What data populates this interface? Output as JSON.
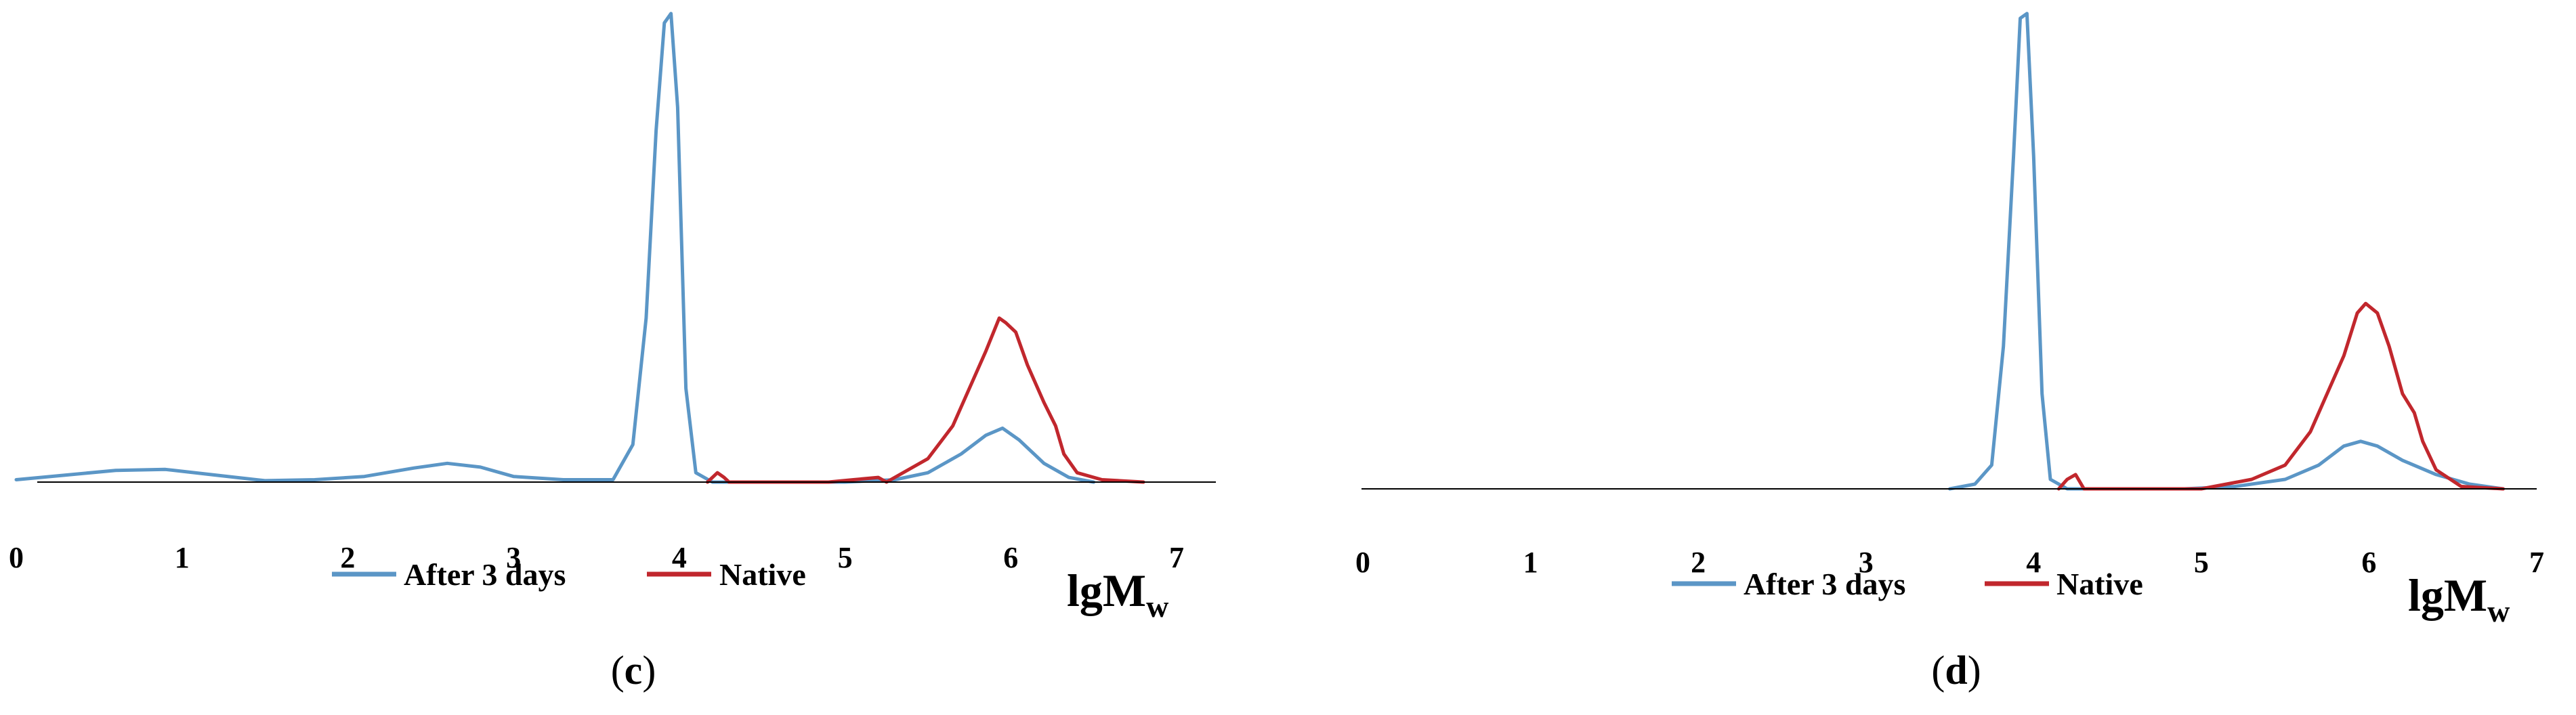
{
  "colors": {
    "after": "#5B96C6",
    "native": "#C1272D",
    "axis": "#000000"
  },
  "panels": [
    {
      "id": "c",
      "label_open": "(",
      "label_letter": "c",
      "label_close": ")",
      "legend": [
        "After 3 days",
        "Native"
      ],
      "xlabel_main": "lgM",
      "xlabel_sub": "w"
    },
    {
      "id": "d",
      "label_open": "(",
      "label_letter": "d",
      "label_close": ")",
      "legend": [
        "After 3 days",
        "Native"
      ],
      "xlabel_main": "lgM",
      "xlabel_sub": "w"
    }
  ],
  "chart_data": [
    {
      "type": "line",
      "title": "",
      "xlabel": "lgMw",
      "ylabel": "",
      "xlim": [
        0,
        7
      ],
      "ylim": [
        0,
        1
      ],
      "xticks": [
        "0",
        "1",
        "2",
        "3",
        "4",
        "5",
        "6",
        "7"
      ],
      "grid": false,
      "legend_position": "bottom",
      "series": [
        {
          "name": "After 3 days",
          "color": "#5B96C6",
          "x": [
            0.0,
            0.3,
            0.6,
            0.9,
            1.2,
            1.5,
            1.8,
            2.1,
            2.4,
            2.6,
            2.8,
            3.0,
            3.3,
            3.6,
            3.72,
            3.8,
            3.86,
            3.91,
            3.95,
            3.99,
            4.04,
            4.1,
            4.2,
            4.5,
            5.0,
            5.3,
            5.5,
            5.7,
            5.85,
            5.95,
            6.05,
            6.2,
            6.35,
            6.5
          ],
          "y": [
            0.005,
            0.015,
            0.025,
            0.027,
            0.015,
            0.003,
            0.005,
            0.012,
            0.03,
            0.04,
            0.032,
            0.012,
            0.005,
            0.005,
            0.08,
            0.35,
            0.75,
            0.98,
            1.0,
            0.8,
            0.2,
            0.02,
            0.0,
            0.0,
            0.0,
            0.005,
            0.02,
            0.06,
            0.1,
            0.115,
            0.09,
            0.04,
            0.01,
            0.0
          ]
        },
        {
          "name": "Native",
          "color": "#C1272D",
          "x": [
            4.17,
            4.23,
            4.27,
            4.3,
            4.5,
            4.9,
            5.05,
            5.2,
            5.25,
            5.5,
            5.65,
            5.75,
            5.85,
            5.93,
            5.97,
            6.03,
            6.1,
            6.2,
            6.27,
            6.32,
            6.4,
            6.55,
            6.8
          ],
          "y": [
            0.0,
            0.02,
            0.01,
            0.0,
            0.0,
            0.0,
            0.005,
            0.01,
            0.0,
            0.05,
            0.12,
            0.2,
            0.28,
            0.35,
            0.34,
            0.32,
            0.25,
            0.17,
            0.12,
            0.06,
            0.02,
            0.005,
            0.0
          ]
        }
      ]
    },
    {
      "type": "line",
      "title": "",
      "xlabel": "lgMw",
      "ylabel": "",
      "xlim": [
        0,
        7
      ],
      "ylim": [
        0,
        1
      ],
      "xticks": [
        "0",
        "1",
        "2",
        "3",
        "4",
        "5",
        "6",
        "7"
      ],
      "grid": false,
      "legend_position": "bottom",
      "series": [
        {
          "name": "After 3 days",
          "color": "#5B96C6",
          "x": [
            3.5,
            3.65,
            3.75,
            3.82,
            3.88,
            3.92,
            3.96,
            4.0,
            4.05,
            4.1,
            4.2,
            4.9,
            5.2,
            5.5,
            5.7,
            5.85,
            5.95,
            6.05,
            6.2,
            6.4,
            6.6,
            6.8
          ],
          "y": [
            0.0,
            0.01,
            0.05,
            0.3,
            0.7,
            0.99,
            1.0,
            0.7,
            0.2,
            0.02,
            0.0,
            0.0,
            0.005,
            0.02,
            0.05,
            0.09,
            0.1,
            0.09,
            0.06,
            0.03,
            0.01,
            0.0
          ]
        },
        {
          "name": "Native",
          "color": "#C1272D",
          "x": [
            4.15,
            4.2,
            4.25,
            4.3,
            4.6,
            5.0,
            5.3,
            5.5,
            5.65,
            5.75,
            5.85,
            5.93,
            5.98,
            6.05,
            6.12,
            6.2,
            6.27,
            6.32,
            6.4,
            6.55,
            6.8
          ],
          "y": [
            0.0,
            0.02,
            0.03,
            0.0,
            0.0,
            0.0,
            0.02,
            0.05,
            0.12,
            0.2,
            0.28,
            0.37,
            0.39,
            0.37,
            0.3,
            0.2,
            0.16,
            0.1,
            0.04,
            0.005,
            0.0
          ]
        }
      ]
    }
  ]
}
